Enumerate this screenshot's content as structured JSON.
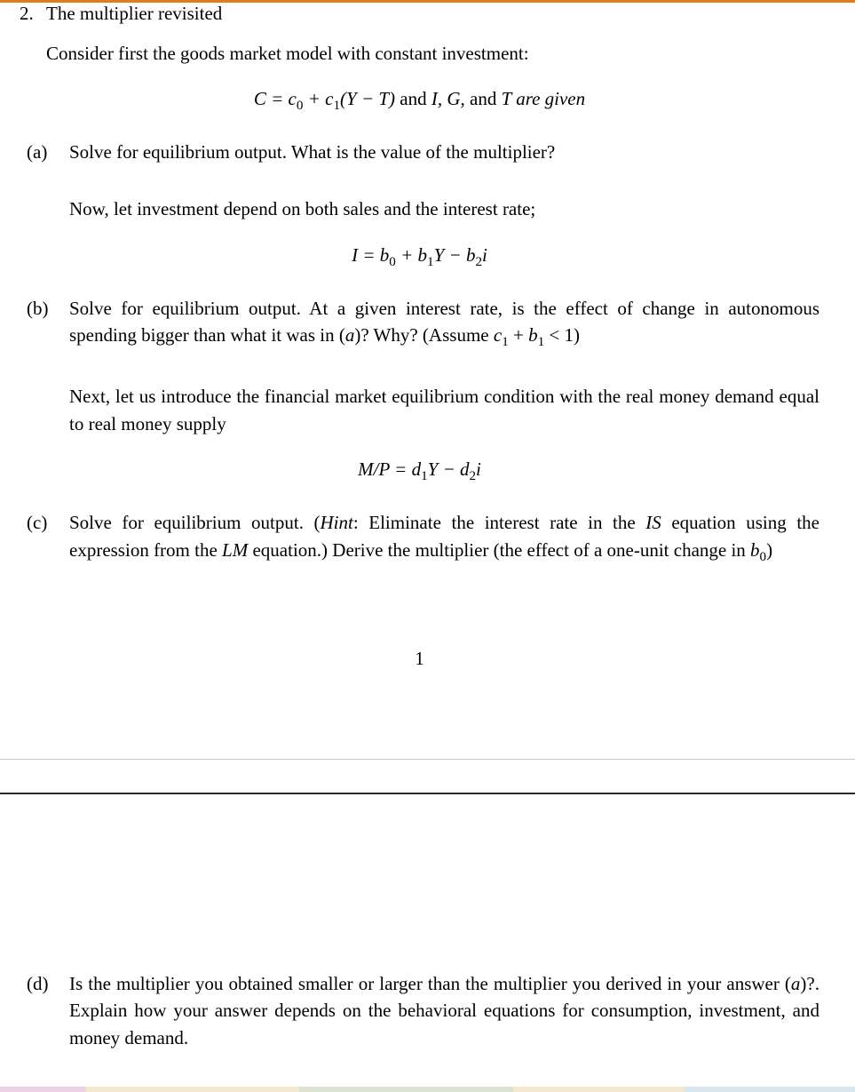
{
  "colors": {
    "top_rule": "#e07b1f",
    "text": "#000000",
    "background": "#ffffff",
    "page_gap_top_border": "#c9c9c9",
    "page_gap_bottom_border": "#2b2b2b"
  },
  "typography": {
    "body_fontsize_pt": 16,
    "font_family": "Palatino"
  },
  "problem": {
    "number": "2.",
    "title": "The multiplier revisited",
    "intro": "Consider first the goods market model with constant investment:",
    "eq1_html": "<span class='ital'>C</span> = <span class='ital'>c</span><span class='sub'>0</span> + <span class='ital'>c</span><span class='sub'>1</span>(<span class='ital'>Y</span> − <span class='ital'>T</span>) <span class='rm'>and</span> <span class='ital'>I</span>, <span class='ital'>G</span>, <span class='rm'> and </span><span class='ital'>T</span> <span class='ital'>are given</span>",
    "a": {
      "label": "(a)",
      "text": "Solve for equilibrium output. What is the value of the multiplier?"
    },
    "follow_a": "Now, let investment depend on both sales and the interest rate;",
    "eq2_html": "<span class='ital'>I</span> = <span class='ital'>b</span><span class='sub'>0</span> + <span class='ital'>b</span><span class='sub'>1</span><span class='ital'>Y</span> − <span class='ital'>b</span><span class='sub'>2</span><span class='ital'>i</span>",
    "b": {
      "label": "(b)",
      "text_html": "Solve for equilibrium output. At a given interest rate, is the effect of change in autonomous spending bigger than what it was in (<span class='ital'>a</span>)? Why? (Assume <span class='ital'>c</span><span class='sub'>1</span> + <span class='ital'>b</span><span class='sub'>1</span> &lt; 1)"
    },
    "follow_b": "Next, let us introduce the financial market equilibrium condition with the real money demand equal to real money supply",
    "eq3_html": "<span class='ital'>M</span>/<span class='ital'>P</span> = <span class='ital'>d</span><span class='sub'>1</span><span class='ital'>Y</span> − <span class='ital'>d</span><span class='sub'>2</span><span class='ital'>i</span>",
    "c": {
      "label": "(c)",
      "text_html": "Solve for equilibrium output. (<span class='ital'>Hint</span>: Eliminate the interest rate in the <span class='ital'>IS</span> equation using the expression from the <span class='ital'>LM</span> equation.) Derive the multiplier (the effect of a one-unit change in <span class='ital'>b</span><span class='sub'>0</span>)"
    },
    "page_number": "1",
    "d": {
      "label": "(d)",
      "text_html": "Is the multiplier you obtained smaller or larger than the multiplier you derived in your answer (<span class='ital'>a</span>)?. Explain how your answer depends on the behavioral equations for consumption, investment, and money demand."
    }
  }
}
